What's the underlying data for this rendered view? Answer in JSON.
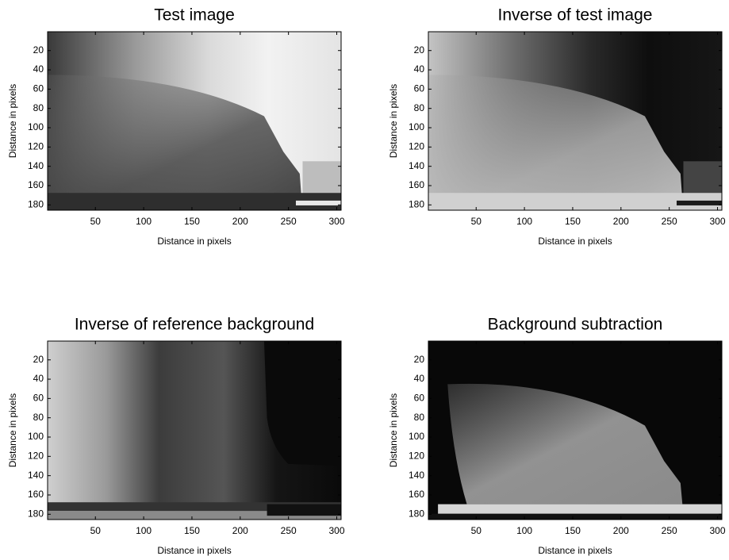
{
  "chart_data": [
    {
      "type": "image",
      "title": "Test image",
      "xlabel": "Distance in pixels",
      "ylabel": "Distance in pixels",
      "colormap": "gray",
      "xlim": [
        0.5,
        304.5
      ],
      "ylim": [
        0.5,
        185.5
      ],
      "yreverse": true,
      "xticks": [
        50,
        100,
        150,
        200,
        250,
        300
      ],
      "yticks": [
        20,
        40,
        60,
        80,
        100,
        120,
        140,
        160,
        180
      ]
    },
    {
      "type": "image",
      "title": "Inverse of test image",
      "xlabel": "Distance in pixels",
      "ylabel": "Distance in pixels",
      "colormap": "gray",
      "xlim": [
        0.5,
        304.5
      ],
      "ylim": [
        0.5,
        185.5
      ],
      "yreverse": true,
      "xticks": [
        50,
        100,
        150,
        200,
        250,
        300
      ],
      "yticks": [
        20,
        40,
        60,
        80,
        100,
        120,
        140,
        160,
        180
      ]
    },
    {
      "type": "image",
      "title": "Inverse of reference background",
      "xlabel": "Distance in pixels",
      "ylabel": "Distance in pixels",
      "colormap": "gray",
      "xlim": [
        0.5,
        304.5
      ],
      "ylim": [
        0.5,
        185.5
      ],
      "yreverse": true,
      "xticks": [
        50,
        100,
        150,
        200,
        250,
        300
      ],
      "yticks": [
        20,
        40,
        60,
        80,
        100,
        120,
        140,
        160,
        180
      ]
    },
    {
      "type": "image",
      "title": "Background subtraction",
      "xlabel": "Distance in pixels",
      "ylabel": "Distance in pixels",
      "colormap": "gray",
      "xlim": [
        0.5,
        304.5
      ],
      "ylim": [
        0.5,
        185.5
      ],
      "yreverse": true,
      "xticks": [
        50,
        100,
        150,
        200,
        250,
        300
      ],
      "yticks": [
        20,
        40,
        60,
        80,
        100,
        120,
        140,
        160,
        180
      ]
    }
  ]
}
